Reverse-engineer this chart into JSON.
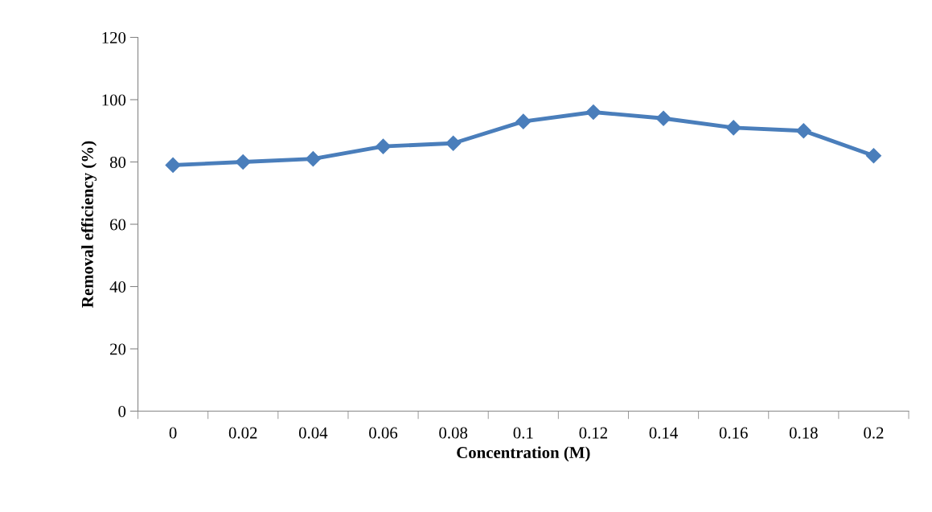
{
  "chart_data": {
    "type": "line",
    "xlabel": "Concentration (M)",
    "ylabel": "Removal efficiency (%)",
    "categories": [
      "0",
      "0.02",
      "0.04",
      "0.06",
      "0.08",
      "0.1",
      "0.12",
      "0.14",
      "0.16",
      "0.18",
      "0.2"
    ],
    "series": [
      {
        "color": "#4a7ebb",
        "values": [
          79,
          80,
          81,
          85,
          86,
          93,
          96,
          94,
          91,
          90,
          82
        ]
      }
    ],
    "ylim": [
      0,
      120
    ],
    "yticks": [
      0,
      20,
      40,
      60,
      80,
      100,
      120
    ],
    "marker": "diamond",
    "line_style": "solid",
    "grid": false,
    "legend": false
  }
}
